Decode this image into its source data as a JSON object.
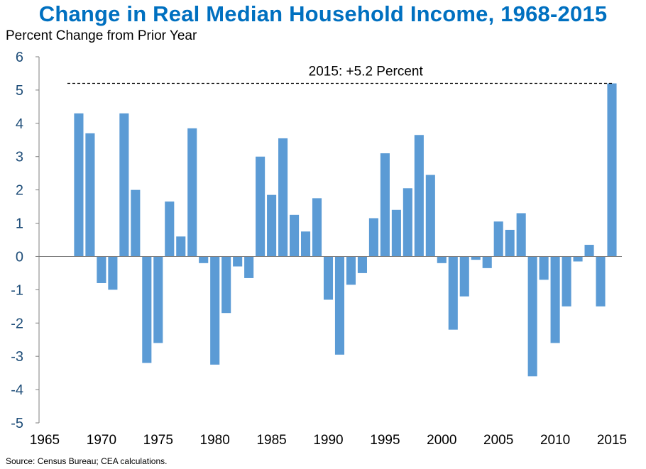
{
  "chart_data": {
    "type": "bar",
    "title": "Change in Real Median Household Income, 1968-2015",
    "ylabel": "Percent Change from Prior Year",
    "xlabel": "",
    "source": "Source: Census Bureau; CEA calculations.",
    "ylim": [
      -5,
      6
    ],
    "xlim": [
      1965,
      2015
    ],
    "y_ticks": [
      "6",
      "5",
      "4",
      "3",
      "2",
      "1",
      "0",
      "-1",
      "-2",
      "-3",
      "-4",
      "-5"
    ],
    "x_ticks": [
      "1965",
      "1970",
      "1975",
      "1980",
      "1985",
      "1990",
      "1995",
      "2000",
      "2005",
      "2010",
      "2015"
    ],
    "annotation": {
      "text": "2015: +5.2 Percent",
      "value": 5.2
    },
    "bar_color": "#5b9bd5",
    "categories": [
      1968,
      1969,
      1970,
      1971,
      1972,
      1973,
      1974,
      1975,
      1976,
      1977,
      1978,
      1979,
      1980,
      1981,
      1982,
      1983,
      1984,
      1985,
      1986,
      1987,
      1988,
      1989,
      1990,
      1991,
      1992,
      1993,
      1994,
      1995,
      1996,
      1997,
      1998,
      1999,
      2000,
      2001,
      2002,
      2003,
      2004,
      2005,
      2006,
      2007,
      2008,
      2009,
      2010,
      2011,
      2012,
      2013,
      2014,
      2015
    ],
    "values": [
      4.3,
      3.7,
      -0.8,
      -1.0,
      4.3,
      2.0,
      -3.2,
      -2.6,
      1.65,
      0.6,
      3.85,
      -0.2,
      -3.25,
      -1.7,
      -0.3,
      -0.65,
      3.0,
      1.85,
      3.55,
      1.25,
      0.75,
      1.75,
      -1.3,
      -2.95,
      -0.85,
      -0.5,
      1.15,
      3.1,
      1.4,
      2.05,
      3.65,
      2.45,
      -0.2,
      -2.2,
      -1.2,
      -0.1,
      -0.35,
      1.05,
      0.8,
      1.3,
      -3.6,
      -0.7,
      -2.6,
      -1.5,
      -0.15,
      0.35,
      -1.5,
      5.2
    ]
  }
}
